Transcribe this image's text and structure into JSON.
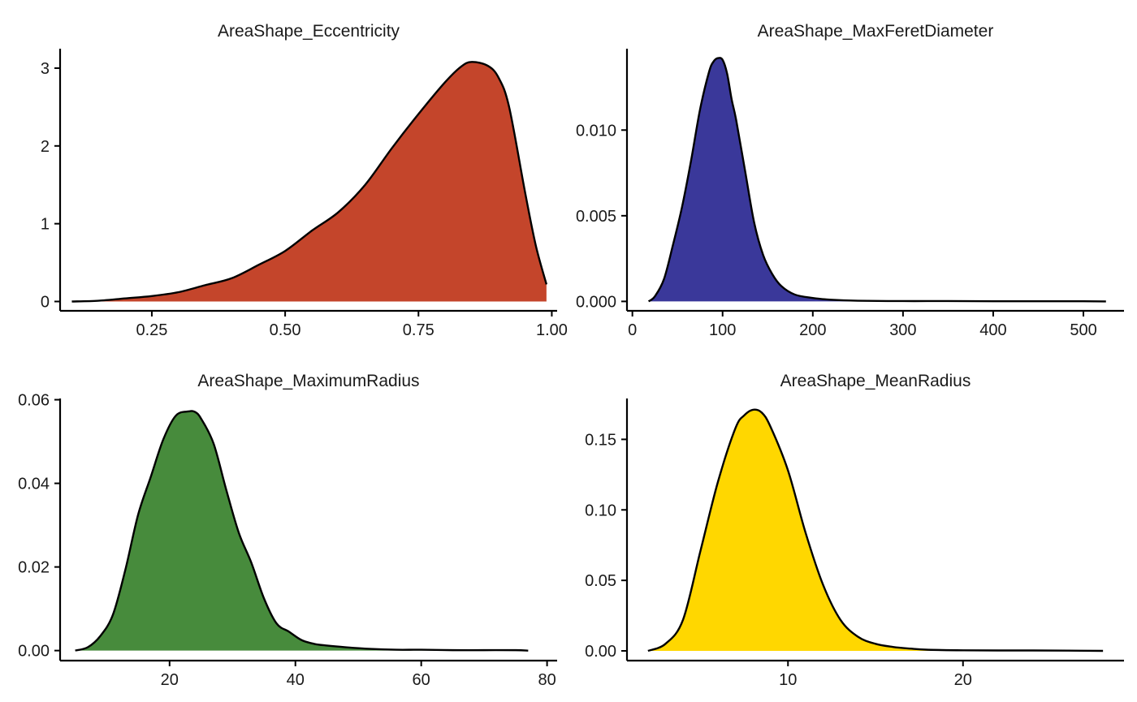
{
  "chart_data": [
    {
      "type": "area",
      "title": "AreaShape_Eccentricity",
      "xlabel": "",
      "ylabel": "",
      "fill_color": "#C4452B",
      "xlim": [
        0.078,
        1.01
      ],
      "ylim": [
        -0.12,
        3.25
      ],
      "x_ticks": [
        0.25,
        0.5,
        0.75,
        1.0
      ],
      "x_tick_labels": [
        "0.25",
        "0.50",
        "0.75",
        "1.00"
      ],
      "y_ticks": [
        0,
        1,
        2,
        3
      ],
      "y_tick_labels": [
        "0",
        "1",
        "2",
        "3"
      ],
      "x": [
        0.1,
        0.15,
        0.2,
        0.25,
        0.3,
        0.35,
        0.4,
        0.45,
        0.5,
        0.55,
        0.6,
        0.65,
        0.7,
        0.75,
        0.8,
        0.83,
        0.85,
        0.88,
        0.9,
        0.92,
        0.95,
        0.97,
        0.99
      ],
      "y": [
        0.0,
        0.01,
        0.04,
        0.07,
        0.12,
        0.21,
        0.3,
        0.47,
        0.65,
        0.91,
        1.15,
        1.5,
        1.97,
        2.41,
        2.82,
        3.02,
        3.08,
        3.03,
        2.88,
        2.5,
        1.4,
        0.72,
        0.22
      ]
    },
    {
      "type": "area",
      "title": "AreaShape_MaxFeretDiameter",
      "xlabel": "",
      "ylabel": "",
      "fill_color": "#3A389A",
      "xlim": [
        -6,
        545
      ],
      "ylim": [
        -0.00055,
        0.01475
      ],
      "x_ticks": [
        0,
        100,
        200,
        300,
        400,
        500
      ],
      "x_tick_labels": [
        "0",
        "100",
        "200",
        "300",
        "400",
        "500"
      ],
      "y_ticks": [
        0.0,
        0.005,
        0.01
      ],
      "y_tick_labels": [
        "0.000",
        "0.005",
        "0.010"
      ],
      "x": [
        18,
        25,
        35,
        45,
        55,
        65,
        75,
        85,
        90,
        95,
        100,
        105,
        110,
        115,
        125,
        135,
        145,
        155,
        165,
        180,
        200,
        220,
        250,
        300,
        350,
        400,
        450,
        500,
        525
      ],
      "y": [
        0.0,
        0.0003,
        0.0013,
        0.0033,
        0.0055,
        0.0082,
        0.0112,
        0.0134,
        0.014,
        0.0142,
        0.0141,
        0.0133,
        0.0118,
        0.0106,
        0.0076,
        0.0046,
        0.0027,
        0.0016,
        0.0009,
        0.0004,
        0.0002,
        0.0001,
        4e-05,
        2e-05,
        2e-05,
        1e-05,
        1e-05,
        1e-05,
        0.0
      ]
    },
    {
      "type": "area",
      "title": "AreaShape_MaximumRadius",
      "xlabel": "",
      "ylabel": "",
      "fill_color": "#478B3C",
      "xlim": [
        2.6,
        81.6
      ],
      "ylim": [
        -0.0024,
        0.0603
      ],
      "x_ticks": [
        20,
        40,
        60,
        80
      ],
      "x_tick_labels": [
        "20",
        "40",
        "60",
        "80"
      ],
      "y_ticks": [
        0.0,
        0.02,
        0.04,
        0.06
      ],
      "y_tick_labels": [
        "0.00",
        "0.02",
        "0.04",
        "0.06"
      ],
      "x": [
        5,
        7,
        9,
        11,
        13,
        15,
        17,
        19,
        21,
        23,
        24,
        25,
        27,
        29,
        31,
        33,
        35,
        37,
        39,
        41,
        43,
        45,
        48,
        52,
        56,
        60,
        65,
        70,
        75,
        77
      ],
      "y": [
        0.0,
        0.0008,
        0.0035,
        0.0086,
        0.0195,
        0.0325,
        0.0415,
        0.0505,
        0.0562,
        0.0572,
        0.0571,
        0.0555,
        0.0495,
        0.0385,
        0.0282,
        0.021,
        0.0125,
        0.0065,
        0.0045,
        0.0025,
        0.0016,
        0.0012,
        0.0008,
        0.0004,
        0.0002,
        0.0002,
        0.0001,
        0.0001,
        0.0001,
        0.0
      ]
    },
    {
      "type": "area",
      "title": "AreaShape_MeanRadius",
      "xlabel": "",
      "ylabel": "",
      "fill_color": "#FFD700",
      "xlim": [
        0.8,
        29.2
      ],
      "ylim": [
        -0.0069,
        0.179
      ],
      "x_ticks": [
        10,
        20
      ],
      "x_tick_labels": [
        "10",
        "20"
      ],
      "y_ticks": [
        0.0,
        0.05,
        0.1,
        0.15
      ],
      "y_tick_labels": [
        "0.00",
        "0.05",
        "0.10",
        "0.15"
      ],
      "x": [
        2,
        3,
        4,
        5,
        6,
        7,
        7.5,
        8,
        8.5,
        9,
        10,
        11,
        12,
        13,
        14,
        15,
        16,
        17,
        18,
        20,
        22,
        24,
        26,
        28
      ],
      "y": [
        0.0,
        0.005,
        0.022,
        0.071,
        0.12,
        0.158,
        0.167,
        0.171,
        0.169,
        0.159,
        0.128,
        0.084,
        0.047,
        0.022,
        0.01,
        0.005,
        0.0028,
        0.0016,
        0.0008,
        0.0004,
        0.0003,
        0.0003,
        0.0002,
        0.0
      ]
    }
  ]
}
